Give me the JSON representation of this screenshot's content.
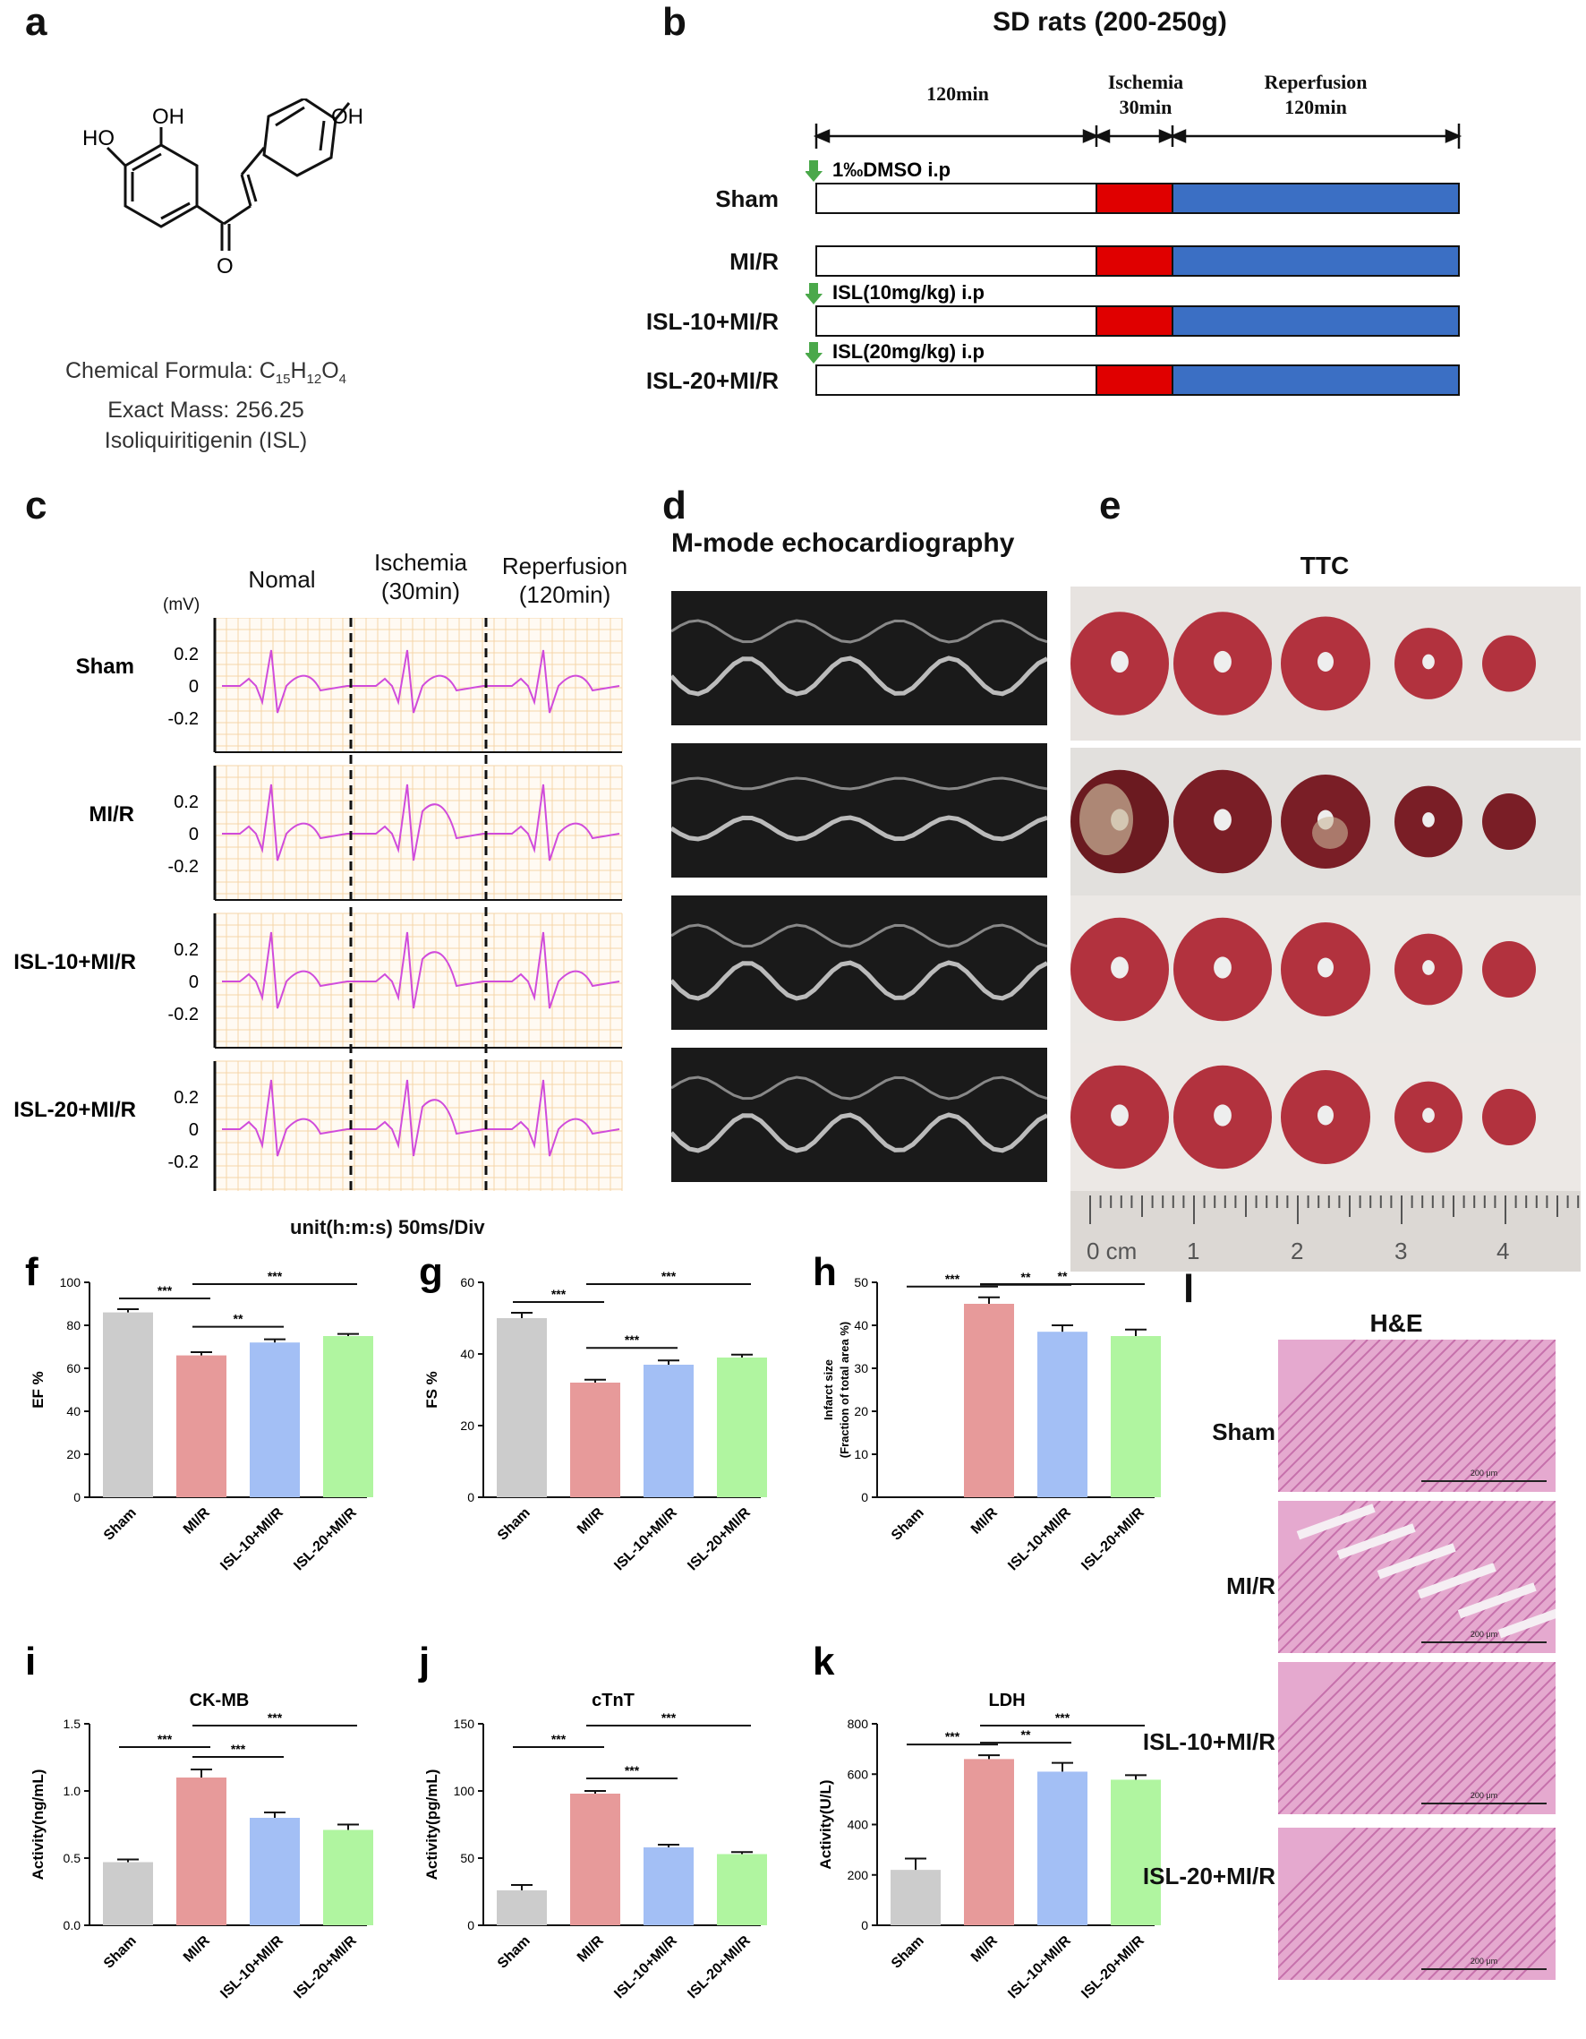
{
  "panels": {
    "a": {
      "letter": "a",
      "formula_label": "Chemical Formula: C",
      "formula_c": "15",
      "formula_h_letter": "H",
      "formula_h": "12",
      "formula_o_letter": "O",
      "formula_o": "4",
      "mass": "Exact Mass: 256.25",
      "name": "Isoliquiritigenin (ISL)",
      "atoms": {
        "ho1": "HO",
        "oh2": "OH",
        "oh3": "OH",
        "o": "O"
      }
    },
    "b": {
      "letter": "b",
      "title": "SD rats (200-250g)",
      "t1": "120min",
      "t2_line1": "Ischemia",
      "t2_line2": "30min",
      "t3_line1": "Reperfusion",
      "t3_line2": "120min",
      "rows": [
        {
          "label": "Sham",
          "note": "1‰DMSO i.p"
        },
        {
          "label": "MI/R",
          "note": ""
        },
        {
          "label": "ISL-10+MI/R",
          "note": "ISL(10mg/kg) i.p"
        },
        {
          "label": "ISL-20+MI/R",
          "note": "ISL(20mg/kg) i.p"
        }
      ],
      "colors": {
        "ischemia": "#e00000",
        "reperfusion": "#3b6fc4",
        "arrow": "#4aa84a"
      }
    },
    "c": {
      "letter": "c",
      "cols": [
        "Nomal",
        "Ischemia",
        "(30min)",
        "Reperfusion",
        "(120min)"
      ],
      "unit": "(mV)",
      "ticks": [
        "0.2",
        "0",
        "-0.2"
      ],
      "rows": [
        "Sham",
        "MI/R",
        "ISL-10+MI/R",
        "ISL-20+MI/R"
      ],
      "footer": "unit(h:m:s) 50ms/Div"
    },
    "d": {
      "letter": "d",
      "title": "M-mode echocardiography"
    },
    "e": {
      "letter": "e",
      "title": "TTC",
      "ruler": [
        "0 cm",
        "1",
        "2",
        "3",
        "4"
      ]
    },
    "l": {
      "letter": "l",
      "title": "H&E",
      "rows": [
        "Sham",
        "MI/R",
        "ISL-10+MI/R",
        "ISL-20+MI/R"
      ],
      "scale": "200 μm"
    }
  },
  "chart_data": [
    {
      "id": "f",
      "letter": "f",
      "type": "bar",
      "title": "",
      "ylabel": "EF %",
      "ylim": [
        0,
        100
      ],
      "yticks": [
        "0",
        "20",
        "40",
        "60",
        "80",
        "100"
      ],
      "categories": [
        "Sham",
        "MI/R",
        "ISL-10+MI/R",
        "ISL-20+MI/R"
      ],
      "values": [
        86,
        66,
        72,
        75
      ],
      "errors": [
        1.5,
        1.5,
        1.5,
        1
      ],
      "sig": [
        {
          "from": 0,
          "to": 1,
          "label": "***"
        },
        {
          "from": 1,
          "to": 3,
          "label": "***"
        },
        {
          "from": 1,
          "to": 2,
          "label": "**"
        }
      ]
    },
    {
      "id": "g",
      "letter": "g",
      "type": "bar",
      "title": "",
      "ylabel": "FS %",
      "ylim": [
        0,
        60
      ],
      "yticks": [
        "0",
        "20",
        "40",
        "60"
      ],
      "categories": [
        "Sham",
        "MI/R",
        "ISL-10+MI/R",
        "ISL-20+MI/R"
      ],
      "values": [
        50,
        32,
        37,
        39
      ],
      "errors": [
        1.5,
        0.8,
        1.2,
        0.8
      ],
      "sig": [
        {
          "from": 0,
          "to": 1,
          "label": "***"
        },
        {
          "from": 1,
          "to": 3,
          "label": "***"
        },
        {
          "from": 1,
          "to": 2,
          "label": "***"
        }
      ]
    },
    {
      "id": "h",
      "letter": "h",
      "type": "bar",
      "title": "",
      "ylabel": "Infarct size",
      "ylabel2": "(Fraction of total area %)",
      "ylim": [
        0,
        50
      ],
      "yticks": [
        "0",
        "10",
        "20",
        "30",
        "40",
        "50"
      ],
      "categories": [
        "Sham",
        "MI/R",
        "ISL-10+MI/R",
        "ISL-20+MI/R"
      ],
      "values": [
        0,
        45,
        38.5,
        37.5
      ],
      "errors": [
        0,
        1.5,
        1.5,
        1.5
      ],
      "sig": [
        {
          "from": 0,
          "to": 1,
          "label": "***"
        },
        {
          "from": 1,
          "to": 2,
          "label": "**"
        },
        {
          "from": 1,
          "to": 3,
          "label": "**"
        }
      ]
    },
    {
      "id": "i",
      "letter": "i",
      "type": "bar",
      "title": "CK-MB",
      "ylabel": "Activity(ng/mL)",
      "ylim": [
        0,
        1.5
      ],
      "yticks": [
        "0.0",
        "0.5",
        "1.0",
        "1.5"
      ],
      "categories": [
        "Sham",
        "MI/R",
        "ISL-10+MI/R",
        "ISL-20+MI/R"
      ],
      "values": [
        0.47,
        1.1,
        0.8,
        0.71
      ],
      "errors": [
        0.02,
        0.06,
        0.04,
        0.04
      ],
      "sig": [
        {
          "from": 0,
          "to": 1,
          "label": "***"
        },
        {
          "from": 1,
          "to": 2,
          "label": "***"
        },
        {
          "from": 1,
          "to": 3,
          "label": "***"
        }
      ]
    },
    {
      "id": "j",
      "letter": "j",
      "type": "bar",
      "title": "cTnT",
      "ylabel": "Activity(pg/mL)",
      "ylim": [
        0,
        150
      ],
      "yticks": [
        "0",
        "50",
        "100",
        "150"
      ],
      "categories": [
        "Sham",
        "MI/R",
        "ISL-10+MI/R",
        "ISL-20+MI/R"
      ],
      "values": [
        26,
        98,
        58,
        53
      ],
      "errors": [
        4,
        2,
        2,
        1.5
      ],
      "sig": [
        {
          "from": 0,
          "to": 1,
          "label": "***"
        },
        {
          "from": 1,
          "to": 2,
          "label": "***"
        },
        {
          "from": 1,
          "to": 3,
          "label": "***"
        }
      ]
    },
    {
      "id": "k",
      "letter": "k",
      "type": "bar",
      "title": "LDH",
      "ylabel": "Activity(U/L)",
      "ylim": [
        0,
        800
      ],
      "yticks": [
        "0",
        "200",
        "400",
        "600",
        "800"
      ],
      "categories": [
        "Sham",
        "MI/R",
        "ISL-10+MI/R",
        "ISL-20+MI/R"
      ],
      "values": [
        220,
        660,
        610,
        578
      ],
      "errors": [
        45,
        15,
        35,
        18
      ],
      "sig": [
        {
          "from": 0,
          "to": 1,
          "label": "***"
        },
        {
          "from": 1,
          "to": 2,
          "label": "**"
        },
        {
          "from": 1,
          "to": 3,
          "label": "***"
        }
      ]
    }
  ],
  "bar_colors": [
    "#cccccc",
    "#e79a9a",
    "#a3bff5",
    "#b0f5a0"
  ]
}
